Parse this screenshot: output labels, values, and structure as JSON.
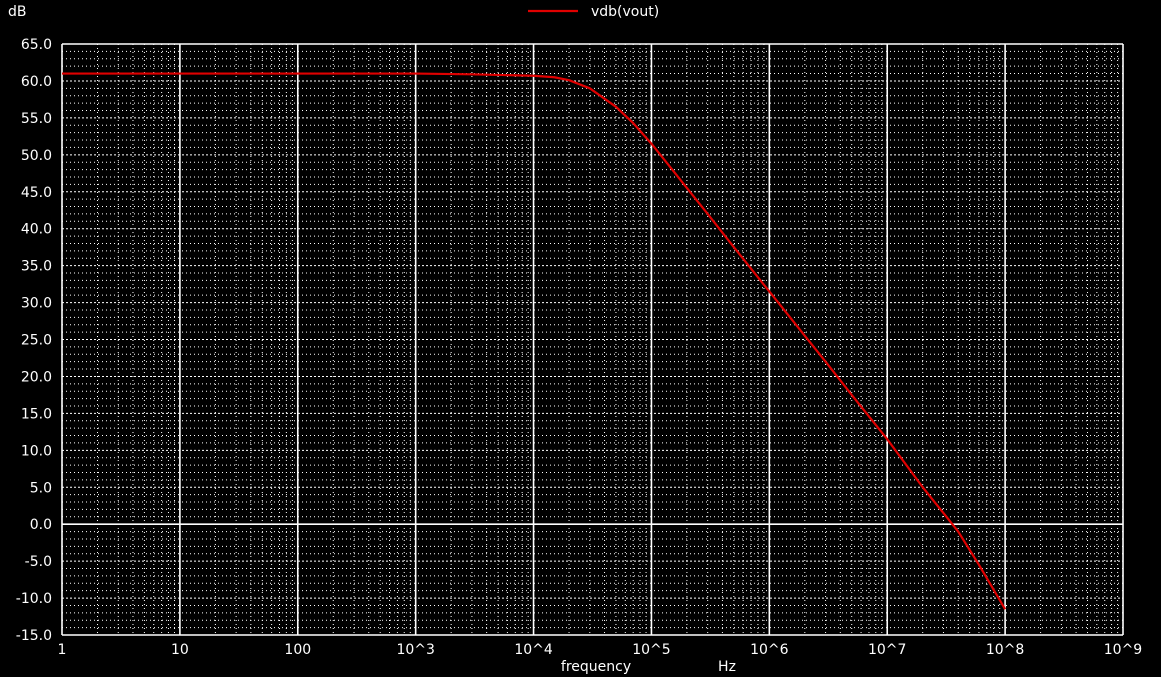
{
  "chart_data": {
    "type": "line",
    "title": "",
    "ylabel": "dB",
    "xlabel": "frequency",
    "xunit": "Hz",
    "xscale": "log",
    "xlim": [
      1,
      1000000000
    ],
    "ylim": [
      -15,
      65
    ],
    "grid": true,
    "legend": "top-center",
    "x_tick_labels": [
      "1",
      "10",
      "100",
      "10^3",
      "10^4",
      "10^5",
      "10^6",
      "10^7",
      "10^8",
      "10^9"
    ],
    "y_tick_labels": [
      "65.0",
      "60.0",
      "55.0",
      "50.0",
      "45.0",
      "40.0",
      "35.0",
      "30.0",
      "25.0",
      "20.0",
      "15.0",
      "10.0",
      "5.0",
      "0.0",
      "-5.0",
      "-10.0",
      "-15.0"
    ],
    "series": [
      {
        "name": "vdb(vout)",
        "color": "#e00000",
        "points": [
          [
            1,
            61.0
          ],
          [
            10,
            61.0
          ],
          [
            100,
            61.0
          ],
          [
            1000,
            61.0
          ],
          [
            3000,
            60.9
          ],
          [
            10000,
            60.7
          ],
          [
            15000,
            60.5
          ],
          [
            20000,
            60.1
          ],
          [
            30000,
            59.0
          ],
          [
            50000,
            56.5
          ],
          [
            70000,
            54.3
          ],
          [
            100000,
            51.5
          ],
          [
            150000,
            48.0
          ],
          [
            200000,
            45.5
          ],
          [
            300000,
            42.0
          ],
          [
            500000,
            37.5
          ],
          [
            1000000,
            31.5
          ],
          [
            2000000,
            25.5
          ],
          [
            3000000,
            22.0
          ],
          [
            5000000,
            17.5
          ],
          [
            10000000,
            11.5
          ],
          [
            20000000,
            5.0
          ],
          [
            30000000,
            1.5
          ],
          [
            40000000,
            -1.0
          ],
          [
            60000000,
            -5.5
          ],
          [
            100000000,
            -11.5
          ]
        ]
      }
    ],
    "colors": {
      "background": "#000000",
      "grid": "#ffffff",
      "axis_text": "#ffffff"
    }
  }
}
